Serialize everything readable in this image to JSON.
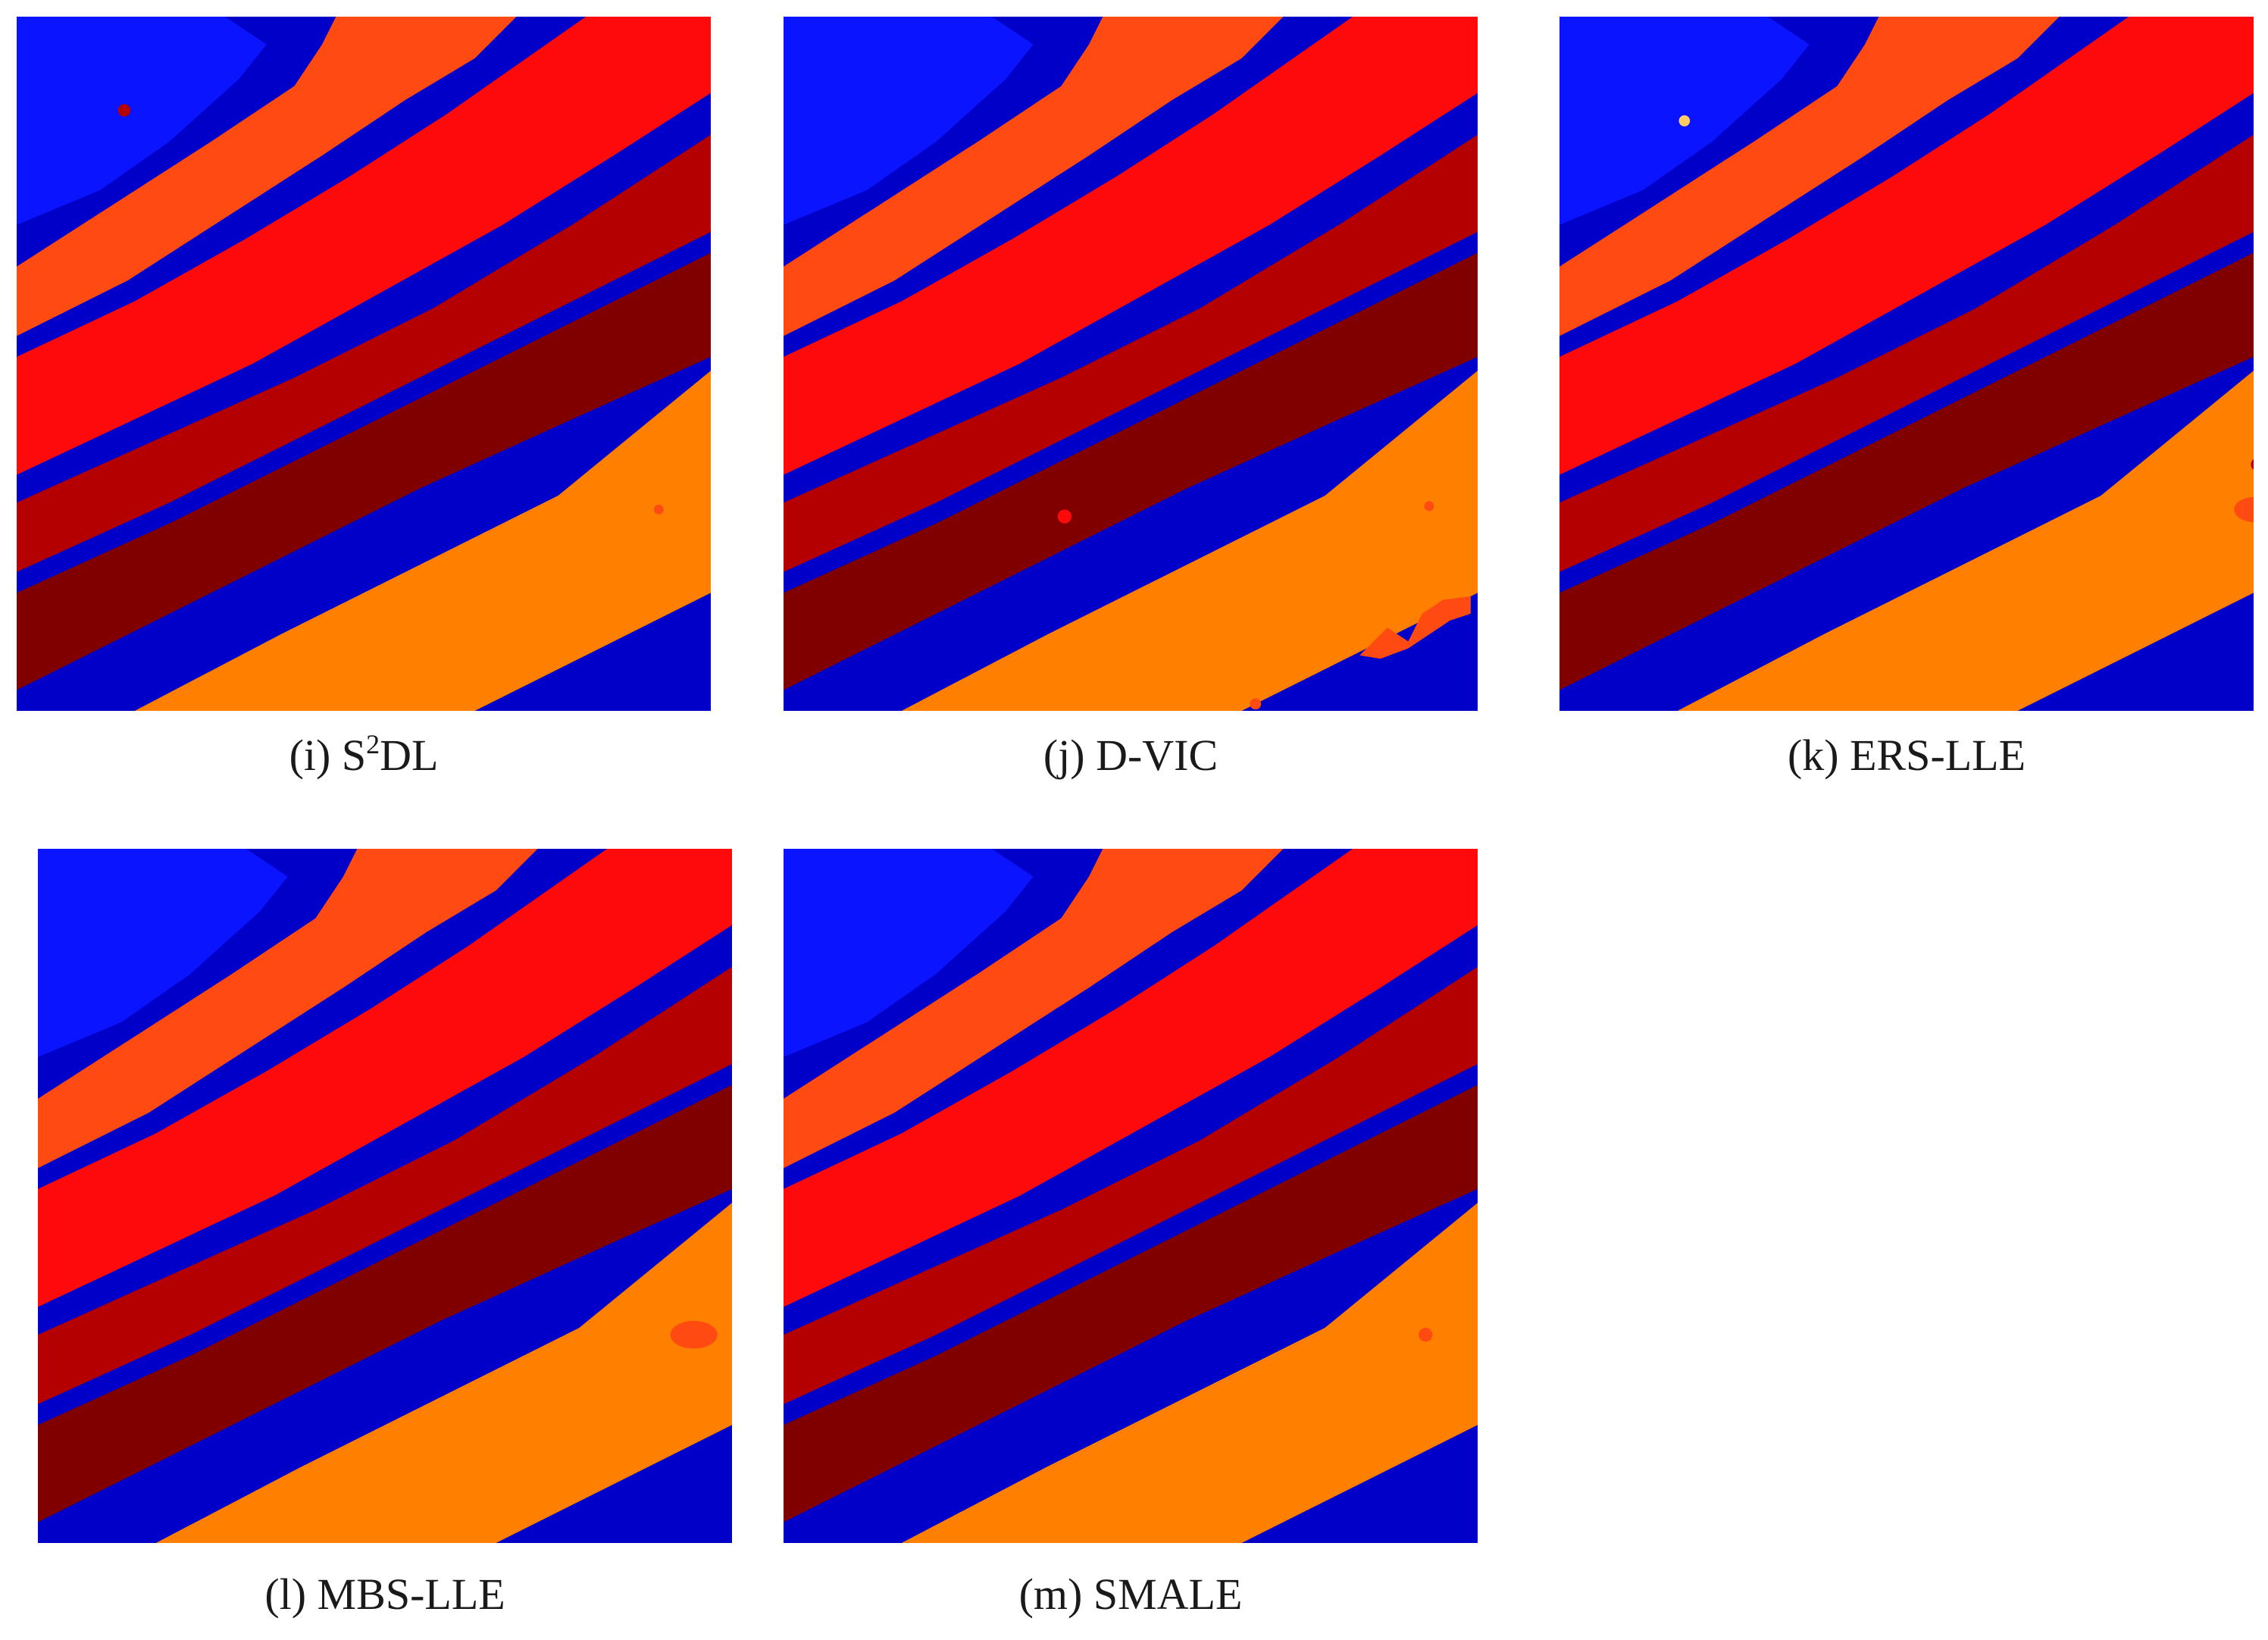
{
  "colors": {
    "blue_dark": "#0000c8",
    "blue_bright": "#0a14ff",
    "orange_red": "#ff4a12",
    "red": "#ff0a0a",
    "dark_red": "#b40000",
    "maroon": "#800000",
    "orange": "#ff8000"
  },
  "panels": [
    {
      "id": "i",
      "label_prefix": "(i) S",
      "label_sup": "2",
      "label_suffix": "DL"
    },
    {
      "id": "j",
      "label_prefix": "(j) D-VIC",
      "label_sup": "",
      "label_suffix": ""
    },
    {
      "id": "k",
      "label_prefix": "(k) ERS-LLE",
      "label_sup": "",
      "label_suffix": ""
    },
    {
      "id": "l",
      "label_prefix": "(l) MBS-LLE",
      "label_sup": "",
      "label_suffix": ""
    },
    {
      "id": "m",
      "label_prefix": "(m) SMALE",
      "label_sup": "",
      "label_suffix": ""
    }
  ]
}
